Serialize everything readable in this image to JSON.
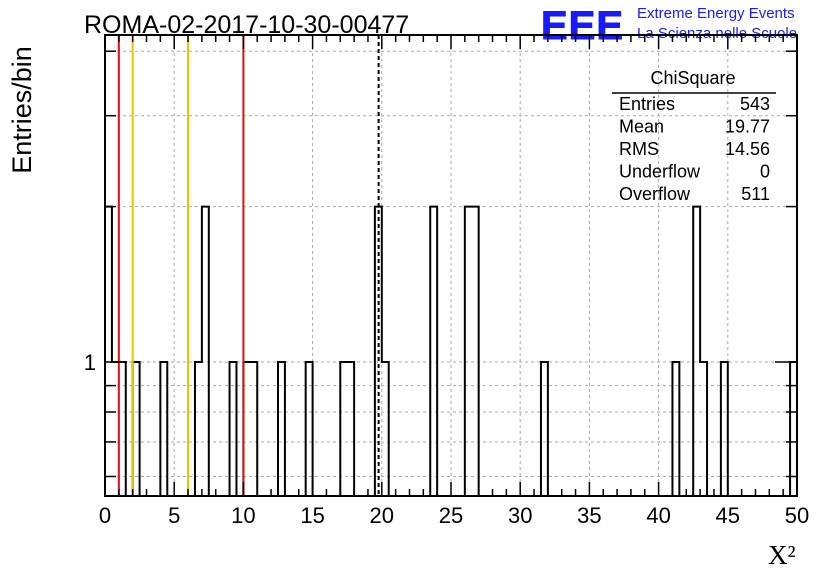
{
  "header": {
    "title": "ROMA-02-2017-10-30-00477",
    "logo_text": "EEE",
    "logo_line1": "Extreme Energy Events",
    "logo_line2": "La Scienza nelle Scuole"
  },
  "colors": {
    "logo_blue": "#1a1aff",
    "histogram": "#000000",
    "red_line": "#dd1111",
    "yellow_line": "#f0c000",
    "grid": "#aaaaaa"
  },
  "stats_box": {
    "title": "ChiSquare",
    "rows": [
      {
        "label": "Entries",
        "value": "543"
      },
      {
        "label": "Mean",
        "value": "19.77"
      },
      {
        "label": "RMS",
        "value": "14.56"
      },
      {
        "label": "Underflow",
        "value": "0"
      },
      {
        "label": "Overflow",
        "value": "511"
      }
    ]
  },
  "chart_data": {
    "type": "bar",
    "histogram_style": "step",
    "xlabel": "X²",
    "ylabel": "Entries/bin",
    "xlim": [
      0,
      50
    ],
    "ylim": [
      0.55,
      4.3
    ],
    "y_scale": "log",
    "grid": true,
    "x_ticks": [
      0,
      5,
      10,
      15,
      20,
      25,
      30,
      35,
      40,
      45,
      50
    ],
    "y_tick_labels": [
      {
        "value": 1,
        "label": "1"
      }
    ],
    "bin_width": 0.5,
    "bins": [
      {
        "x": 0.0,
        "y": 2
      },
      {
        "x": 0.5,
        "y": 1
      },
      {
        "x": 1.0,
        "y": 1
      },
      {
        "x": 2.0,
        "y": 1
      },
      {
        "x": 4.0,
        "y": 1
      },
      {
        "x": 6.5,
        "y": 1
      },
      {
        "x": 7.0,
        "y": 2
      },
      {
        "x": 9.0,
        "y": 1
      },
      {
        "x": 10.0,
        "y": 1
      },
      {
        "x": 10.5,
        "y": 1
      },
      {
        "x": 12.5,
        "y": 1
      },
      {
        "x": 14.5,
        "y": 1
      },
      {
        "x": 17.0,
        "y": 1
      },
      {
        "x": 17.5,
        "y": 1
      },
      {
        "x": 19.5,
        "y": 2
      },
      {
        "x": 20.0,
        "y": 1
      },
      {
        "x": 23.5,
        "y": 2
      },
      {
        "x": 26.0,
        "y": 2
      },
      {
        "x": 26.5,
        "y": 2
      },
      {
        "x": 31.5,
        "y": 1
      },
      {
        "x": 41.0,
        "y": 1
      },
      {
        "x": 42.5,
        "y": 2
      },
      {
        "x": 43.0,
        "y": 1
      },
      {
        "x": 44.5,
        "y": 1
      },
      {
        "x": 49.5,
        "y": 1
      }
    ],
    "vertical_lines": [
      {
        "x": 1.0,
        "color": "red"
      },
      {
        "x": 2.0,
        "color": "yellow"
      },
      {
        "x": 6.0,
        "color": "yellow"
      },
      {
        "x": 10.0,
        "color": "red"
      },
      {
        "x": 19.77,
        "color": "black",
        "style": "dashed"
      }
    ]
  }
}
